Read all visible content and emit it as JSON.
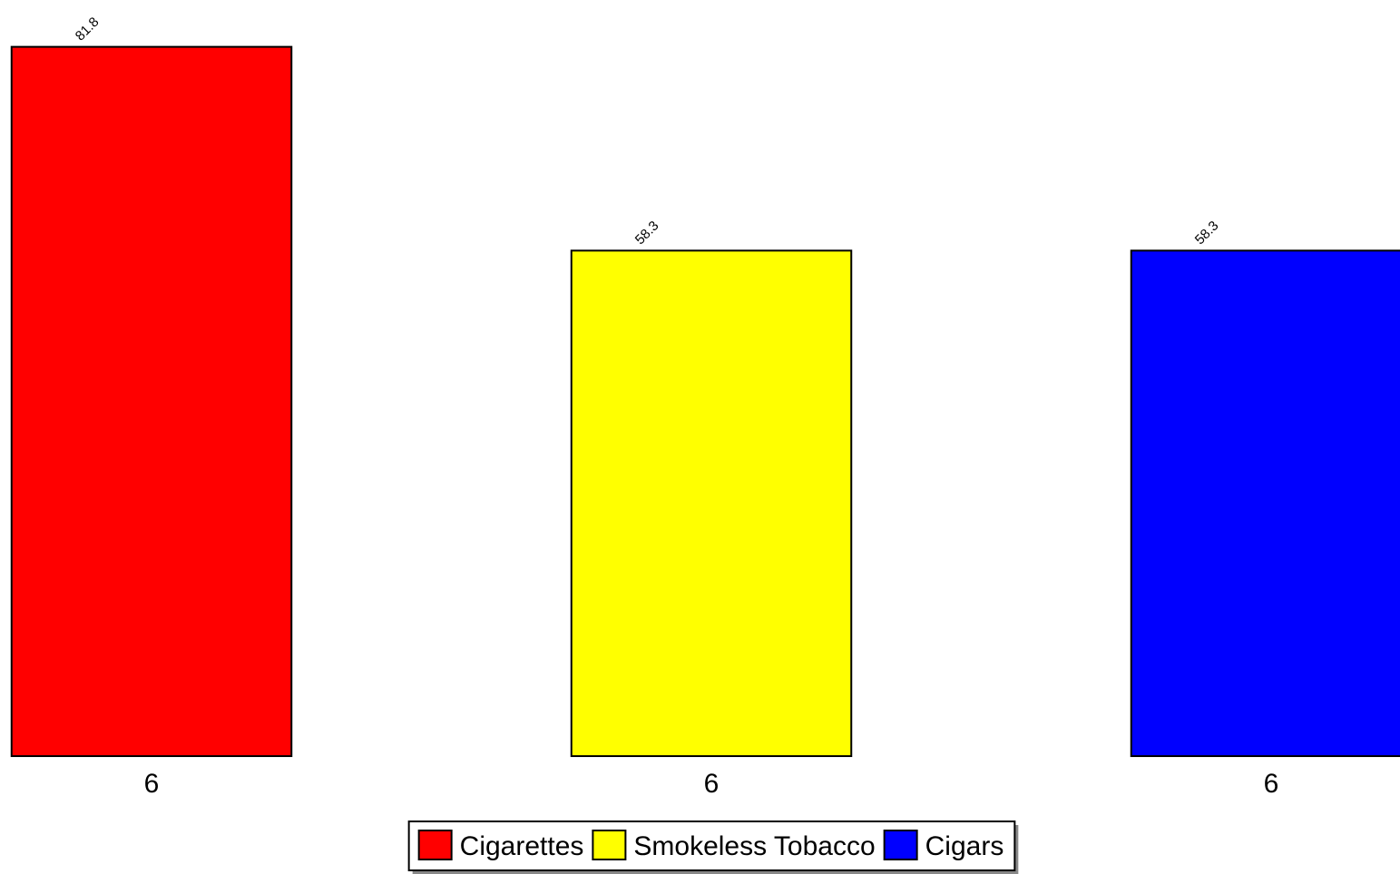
{
  "chart_data": {
    "type": "bar",
    "categories": [
      "6",
      "6",
      "6"
    ],
    "series": [
      {
        "name": "Cigarettes",
        "color": "#ff0000",
        "values": [
          81.8,
          null,
          null
        ]
      },
      {
        "name": "Smokeless Tobacco",
        "color": "#ffff00",
        "values": [
          null,
          58.3,
          null
        ]
      },
      {
        "name": "Cigars",
        "color": "#0000ff",
        "values": [
          null,
          null,
          58.3
        ]
      }
    ],
    "ylim": [
      0,
      87.2
    ],
    "legend": "bottom"
  }
}
